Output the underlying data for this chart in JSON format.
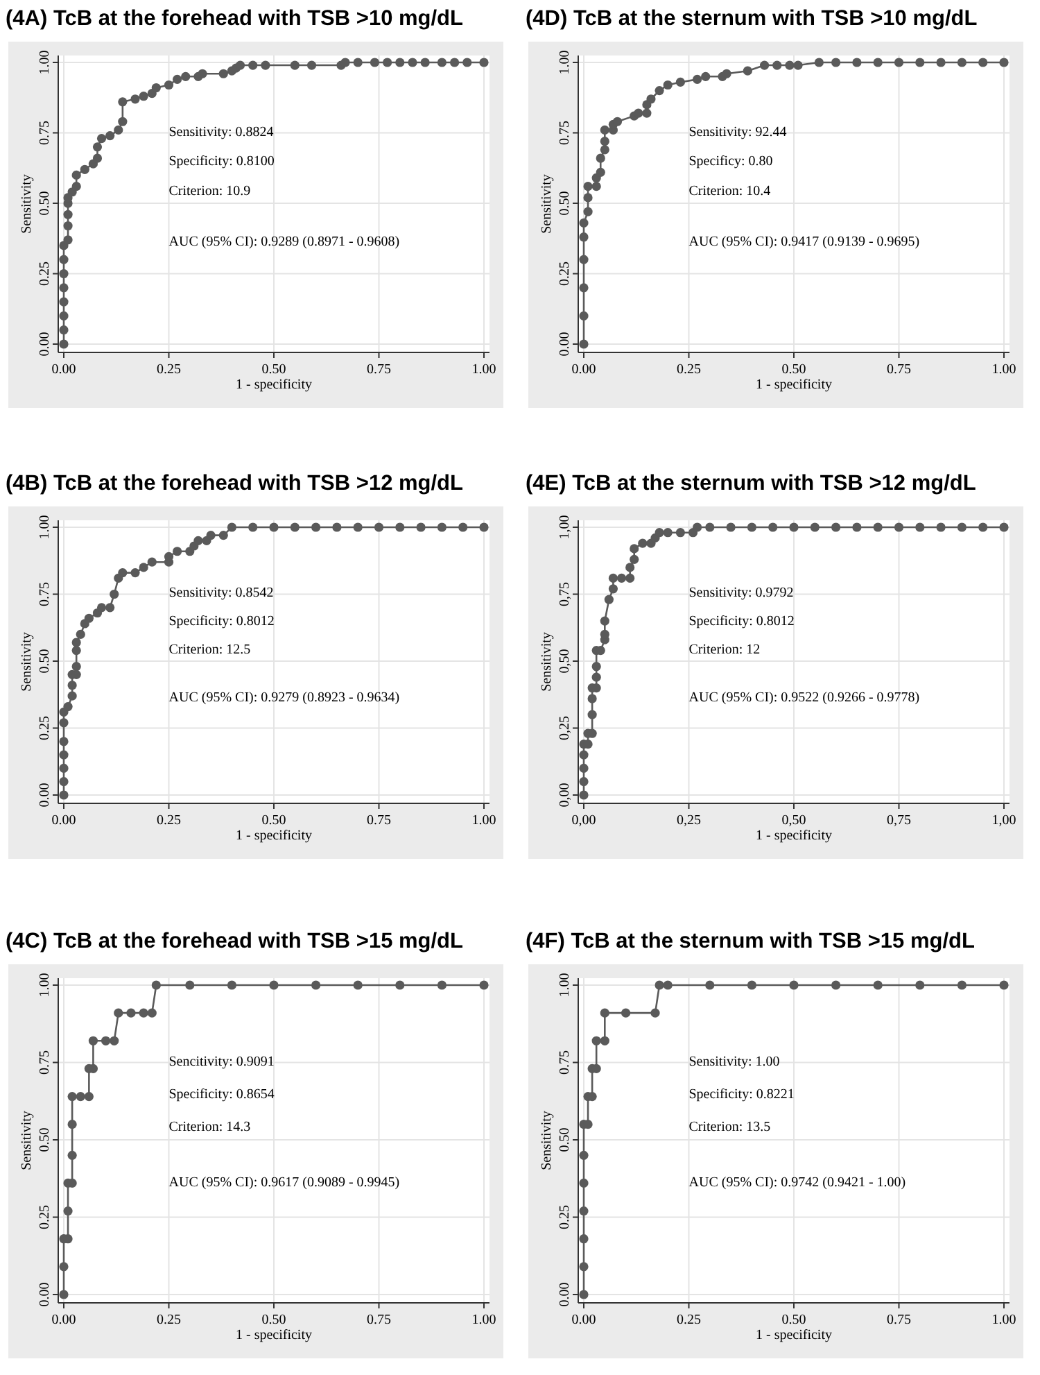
{
  "chart_data": [
    {
      "type": "line",
      "title": "(4A) TcB at the forehead with TSB >10 mg/dL",
      "xlabel": "1 - specificity",
      "ylabel": "Sensitivity",
      "xlim": [
        0,
        1
      ],
      "ylim": [
        0,
        1
      ],
      "xticks": [
        {
          "value": 0,
          "label": "0.00"
        },
        {
          "value": 0.25,
          "label": "0.25"
        },
        {
          "value": 0.5,
          "label": "0.50"
        },
        {
          "value": 0.75,
          "label": "0.75"
        },
        {
          "value": 1,
          "label": "1.00"
        }
      ],
      "yticks": [
        {
          "value": 0,
          "label": "0.00"
        },
        {
          "value": 0.25,
          "label": "0.25"
        },
        {
          "value": 0.5,
          "label": "0.50"
        },
        {
          "value": 0.75,
          "label": "0.75"
        },
        {
          "value": 1,
          "label": "1.00"
        }
      ],
      "grid": true,
      "marker": "circle",
      "annotations": [
        "Sensitivity:  0.8824",
        "Specificity:  0.8100",
        "Criterion:  10.9",
        "AUC (95% CI):  0.9289 (0.8971 - 0.9608)"
      ],
      "series": [
        {
          "color": "#5a5a5a",
          "x": [
            0,
            0,
            0,
            0,
            0,
            0,
            0,
            0,
            0.01,
            0.01,
            0.01,
            0.01,
            0.01,
            0.02,
            0.03,
            0.03,
            0.05,
            0.07,
            0.08,
            0.08,
            0.09,
            0.11,
            0.13,
            0.14,
            0.14,
            0.17,
            0.19,
            0.21,
            0.22,
            0.25,
            0.27,
            0.29,
            0.32,
            0.33,
            0.38,
            0.4,
            0.41,
            0.42,
            0.45,
            0.48,
            0.55,
            0.59,
            0.66,
            0.67,
            0.7,
            0.74,
            0.77,
            0.8,
            0.83,
            0.86,
            0.9,
            0.93,
            0.96,
            1
          ],
          "values": [
            0,
            0.05,
            0.1,
            0.15,
            0.2,
            0.25,
            0.3,
            0.35,
            0.37,
            0.42,
            0.46,
            0.5,
            0.52,
            0.54,
            0.56,
            0.6,
            0.62,
            0.64,
            0.66,
            0.7,
            0.73,
            0.74,
            0.76,
            0.79,
            0.86,
            0.87,
            0.88,
            0.89,
            0.91,
            0.92,
            0.94,
            0.95,
            0.95,
            0.96,
            0.96,
            0.97,
            0.98,
            0.99,
            0.99,
            0.99,
            0.99,
            0.99,
            0.99,
            1,
            1,
            1,
            1,
            1,
            1,
            1,
            1,
            1,
            1,
            1
          ]
        }
      ]
    },
    {
      "type": "line",
      "title": "(4D) TcB at the sternum with TSB >10 mg/dL",
      "xlabel": "1 - specificity",
      "ylabel": "Sensitivity",
      "xlim": [
        0,
        1
      ],
      "ylim": [
        0,
        1
      ],
      "xticks": [
        {
          "value": 0,
          "label": "0.00"
        },
        {
          "value": 0.25,
          "label": "0.25"
        },
        {
          "value": 0.5,
          "label": "0.50"
        },
        {
          "value": 0.75,
          "label": "0.75"
        },
        {
          "value": 1,
          "label": "1.00"
        }
      ],
      "yticks": [
        {
          "value": 0,
          "label": "0.00"
        },
        {
          "value": 0.25,
          "label": "0.25"
        },
        {
          "value": 0.5,
          "label": "0.50"
        },
        {
          "value": 0.75,
          "label": "0.75"
        },
        {
          "value": 1,
          "label": "1.00"
        }
      ],
      "grid": true,
      "marker": "circle",
      "annotations": [
        "Sensitivity:  92.44",
        "Specificy:  0.80",
        "Criterion:  10.4",
        "AUC (95% CI):  0.9417 (0.9139 - 0.9695)"
      ],
      "series": [
        {
          "color": "#5a5a5a",
          "x": [
            0,
            0,
            0,
            0,
            0,
            0,
            0.01,
            0.01,
            0.01,
            0.03,
            0.03,
            0.04,
            0.04,
            0.05,
            0.05,
            0.05,
            0.07,
            0.07,
            0.08,
            0.12,
            0.13,
            0.15,
            0.15,
            0.16,
            0.18,
            0.2,
            0.23,
            0.27,
            0.29,
            0.33,
            0.34,
            0.39,
            0.43,
            0.46,
            0.49,
            0.51,
            0.56,
            0.6,
            0.65,
            0.7,
            0.75,
            0.8,
            0.85,
            0.9,
            0.95,
            1
          ],
          "values": [
            0,
            0.1,
            0.2,
            0.3,
            0.38,
            0.43,
            0.47,
            0.52,
            0.56,
            0.56,
            0.59,
            0.61,
            0.66,
            0.69,
            0.72,
            0.76,
            0.76,
            0.78,
            0.79,
            0.81,
            0.82,
            0.82,
            0.85,
            0.87,
            0.9,
            0.92,
            0.93,
            0.94,
            0.95,
            0.95,
            0.96,
            0.97,
            0.99,
            0.99,
            0.99,
            0.99,
            1,
            1,
            1,
            1,
            1,
            1,
            1,
            1,
            1,
            1
          ]
        }
      ]
    },
    {
      "type": "line",
      "title": "(4B) TcB at the forehead with TSB >12 mg/dL",
      "xlabel": "1 - specificity",
      "ylabel": "Sensitivity",
      "xlim": [
        0,
        1
      ],
      "ylim": [
        0,
        1
      ],
      "xticks": [
        {
          "value": 0,
          "label": "0.00"
        },
        {
          "value": 0.25,
          "label": "0.25"
        },
        {
          "value": 0.5,
          "label": "0.50"
        },
        {
          "value": 0.75,
          "label": "0.75"
        },
        {
          "value": 1,
          "label": "1.00"
        }
      ],
      "yticks": [
        {
          "value": 0,
          "label": "0.00"
        },
        {
          "value": 0.25,
          "label": "0.25"
        },
        {
          "value": 0.5,
          "label": "0.50"
        },
        {
          "value": 0.75,
          "label": "0.75"
        },
        {
          "value": 1,
          "label": "1.00"
        }
      ],
      "grid": true,
      "marker": "circle",
      "annotations": [
        "Sensitivity:  0.8542",
        "Specificity:  0.8012",
        "Criterion:  12.5",
        "AUC (95% CI):  0.9279 (0.8923 - 0.9634)"
      ],
      "series": [
        {
          "color": "#5a5a5a",
          "x": [
            0,
            0,
            0,
            0,
            0,
            0,
            0,
            0.01,
            0.02,
            0.02,
            0.02,
            0.03,
            0.03,
            0.03,
            0.03,
            0.04,
            0.05,
            0.06,
            0.08,
            0.09,
            0.11,
            0.12,
            0.13,
            0.14,
            0.17,
            0.19,
            0.21,
            0.25,
            0.25,
            0.27,
            0.3,
            0.31,
            0.32,
            0.34,
            0.35,
            0.38,
            0.4,
            0.45,
            0.5,
            0.55,
            0.6,
            0.65,
            0.7,
            0.75,
            0.8,
            0.85,
            0.9,
            0.95,
            1
          ],
          "values": [
            0,
            0.05,
            0.1,
            0.15,
            0.2,
            0.27,
            0.31,
            0.33,
            0.37,
            0.41,
            0.45,
            0.45,
            0.48,
            0.54,
            0.57,
            0.6,
            0.64,
            0.66,
            0.68,
            0.7,
            0.7,
            0.75,
            0.81,
            0.83,
            0.83,
            0.85,
            0.87,
            0.87,
            0.89,
            0.91,
            0.91,
            0.93,
            0.95,
            0.95,
            0.97,
            0.97,
            1,
            1,
            1,
            1,
            1,
            1,
            1,
            1,
            1,
            1,
            1,
            1,
            1
          ]
        }
      ]
    },
    {
      "type": "line",
      "title": "(4E) TcB at the sternum with TSB >12 mg/dL",
      "xlabel": "1 - specificity",
      "ylabel": "Sensitivity",
      "xlim": [
        0,
        1
      ],
      "ylim": [
        0,
        1
      ],
      "xticks": [
        {
          "value": 0,
          "label": "0,00"
        },
        {
          "value": 0.25,
          "label": "0,25"
        },
        {
          "value": 0.5,
          "label": "0,50"
        },
        {
          "value": 0.75,
          "label": "0,75"
        },
        {
          "value": 1,
          "label": "1,00"
        }
      ],
      "yticks": [
        {
          "value": 0,
          "label": "0,00"
        },
        {
          "value": 0.25,
          "label": "0,25"
        },
        {
          "value": 0.5,
          "label": "0,50"
        },
        {
          "value": 0.75,
          "label": "0,75"
        },
        {
          "value": 1,
          "label": "1,00"
        }
      ],
      "grid": true,
      "marker": "circle",
      "annotations": [
        "Sensitivity:  0.9792",
        "Specificity:  0.8012",
        "Criterion:  12",
        "AUC (95% CI):  0.9522 (0.9266 - 0.9778)"
      ],
      "series": [
        {
          "color": "#5a5a5a",
          "x": [
            0,
            0,
            0,
            0,
            0,
            0.01,
            0.01,
            0.02,
            0.02,
            0.02,
            0.02,
            0.03,
            0.03,
            0.03,
            0.03,
            0.04,
            0.05,
            0.05,
            0.05,
            0.06,
            0.07,
            0.07,
            0.09,
            0.11,
            0.11,
            0.12,
            0.12,
            0.14,
            0.16,
            0.17,
            0.18,
            0.2,
            0.23,
            0.26,
            0.27,
            0.3,
            0.35,
            0.4,
            0.45,
            0.5,
            0.55,
            0.6,
            0.65,
            0.7,
            0.75,
            0.8,
            0.85,
            0.9,
            0.95,
            1
          ],
          "values": [
            0,
            0.05,
            0.1,
            0.15,
            0.19,
            0.19,
            0.23,
            0.23,
            0.3,
            0.36,
            0.4,
            0.4,
            0.44,
            0.48,
            0.54,
            0.54,
            0.58,
            0.6,
            0.65,
            0.73,
            0.77,
            0.81,
            0.81,
            0.81,
            0.85,
            0.88,
            0.92,
            0.94,
            0.94,
            0.96,
            0.98,
            0.98,
            0.98,
            0.98,
            1,
            1,
            1,
            1,
            1,
            1,
            1,
            1,
            1,
            1,
            1,
            1,
            1,
            1,
            1,
            1
          ]
        }
      ]
    },
    {
      "type": "line",
      "title": "(4C) TcB at the forehead with TSB >15 mg/dL",
      "xlabel": "1 - specificity",
      "ylabel": "Sensitivity",
      "xlim": [
        0,
        1
      ],
      "ylim": [
        0,
        1
      ],
      "xticks": [
        {
          "value": 0,
          "label": "0.00"
        },
        {
          "value": 0.25,
          "label": "0.25"
        },
        {
          "value": 0.5,
          "label": "0.50"
        },
        {
          "value": 0.75,
          "label": "0.75"
        },
        {
          "value": 1,
          "label": "1.00"
        }
      ],
      "yticks": [
        {
          "value": 0,
          "label": "0.00"
        },
        {
          "value": 0.25,
          "label": "0.25"
        },
        {
          "value": 0.5,
          "label": "0.50"
        },
        {
          "value": 0.75,
          "label": "0.75"
        },
        {
          "value": 1,
          "label": "1.00"
        }
      ],
      "grid": true,
      "marker": "circle",
      "annotations": [
        "Sencitivity:  0.9091",
        "Specificity:  0.8654",
        "Criterion:  14.3",
        "AUC (95% CI):  0.9617 (0.9089 - 0.9945)"
      ],
      "series": [
        {
          "color": "#5a5a5a",
          "x": [
            0,
            0,
            0,
            0.01,
            0.01,
            0.01,
            0.02,
            0.02,
            0.02,
            0.02,
            0.04,
            0.06,
            0.06,
            0.07,
            0.07,
            0.1,
            0.12,
            0.13,
            0.16,
            0.19,
            0.21,
            0.22,
            0.3,
            0.4,
            0.5,
            0.6,
            0.7,
            0.8,
            0.9,
            1
          ],
          "values": [
            0,
            0.09,
            0.18,
            0.18,
            0.27,
            0.36,
            0.36,
            0.45,
            0.55,
            0.64,
            0.64,
            0.64,
            0.73,
            0.73,
            0.82,
            0.82,
            0.82,
            0.91,
            0.91,
            0.91,
            0.91,
            1,
            1,
            1,
            1,
            1,
            1,
            1,
            1,
            1
          ]
        }
      ]
    },
    {
      "type": "line",
      "title": "(4F) TcB at the sternum with TSB >15 mg/dL",
      "xlabel": "1 - specificity",
      "ylabel": "Sensitivity",
      "xlim": [
        0,
        1
      ],
      "ylim": [
        0,
        1
      ],
      "xticks": [
        {
          "value": 0,
          "label": "0.00"
        },
        {
          "value": 0.25,
          "label": "0.25"
        },
        {
          "value": 0.5,
          "label": "0.50"
        },
        {
          "value": 0.75,
          "label": "0.75"
        },
        {
          "value": 1,
          "label": "1.00"
        }
      ],
      "yticks": [
        {
          "value": 0,
          "label": "0.00"
        },
        {
          "value": 0.25,
          "label": "0.25"
        },
        {
          "value": 0.5,
          "label": "0.50"
        },
        {
          "value": 0.75,
          "label": "0.75"
        },
        {
          "value": 1,
          "label": "1.00"
        }
      ],
      "grid": true,
      "marker": "circle",
      "annotations": [
        "Sensitivity: 1.00",
        "Specificity:  0.8221",
        "Criterion:  13.5",
        "AUC (95% CI): 0.9742 (0.9421 - 1.00)"
      ],
      "series": [
        {
          "color": "#5a5a5a",
          "x": [
            0,
            0,
            0,
            0,
            0,
            0,
            0,
            0.01,
            0.01,
            0.02,
            0.02,
            0.03,
            0.03,
            0.05,
            0.05,
            0.1,
            0.17,
            0.18,
            0.2,
            0.3,
            0.4,
            0.5,
            0.6,
            0.7,
            0.8,
            0.9,
            1
          ],
          "values": [
            0,
            0.09,
            0.18,
            0.27,
            0.36,
            0.45,
            0.55,
            0.55,
            0.64,
            0.64,
            0.73,
            0.73,
            0.82,
            0.82,
            0.91,
            0.91,
            0.91,
            1,
            1,
            1,
            1,
            1,
            1,
            1,
            1,
            1,
            1
          ]
        }
      ]
    }
  ]
}
